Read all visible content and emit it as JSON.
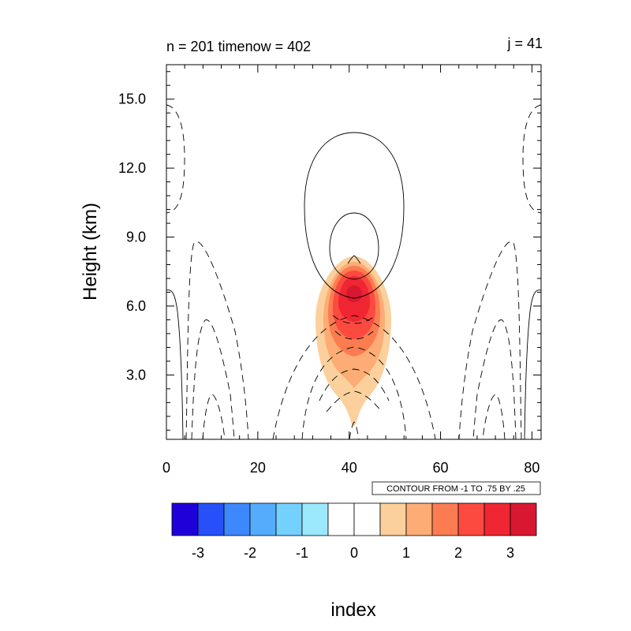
{
  "chart_data": {
    "type": "contour",
    "title_left": "n = 201 timenow = 402",
    "title_right": "j = 41",
    "xlabel": "index",
    "ylabel": "Height (km)",
    "xlim": [
      0,
      82
    ],
    "ylim": [
      0.2,
      16.5
    ],
    "x_ticks": [
      0,
      20,
      40,
      60,
      80
    ],
    "x_tick_labels": [
      "0",
      "20",
      "40",
      "60",
      "80"
    ],
    "y_ticks": [
      3.0,
      6.0,
      9.0,
      12.0,
      15.0
    ],
    "y_tick_labels": [
      "3.0",
      "6.0",
      "9.0",
      "12.0",
      "15.0"
    ],
    "contour_info": "CONTOUR FROM -1 TO .75 BY .25",
    "colorbar": {
      "colors": [
        "#2000d8",
        "#2850f8",
        "#3c88fc",
        "#56acfc",
        "#74d0fc",
        "#9ce8fc",
        "#ffffff",
        "#ffffff",
        "#fcd09c",
        "#fcac74",
        "#fc7c52",
        "#fc4a40",
        "#f02632",
        "#d81830"
      ],
      "tick_values": [
        -3,
        -2,
        -1,
        0,
        1,
        2,
        3
      ],
      "tick_labels": [
        "-3",
        "-2",
        "-1",
        "0",
        "1",
        "2",
        "3"
      ]
    },
    "filled_levels": [
      {
        "level": 0.5,
        "color": "#fcd09c"
      },
      {
        "level": 1.0,
        "color": "#fcac74"
      },
      {
        "level": 1.5,
        "color": "#fc7c52"
      },
      {
        "level": 2.0,
        "color": "#fc4a40"
      },
      {
        "level": 2.5,
        "color": "#f02632"
      },
      {
        "level": 3.0,
        "color": "#d81830"
      }
    ]
  }
}
